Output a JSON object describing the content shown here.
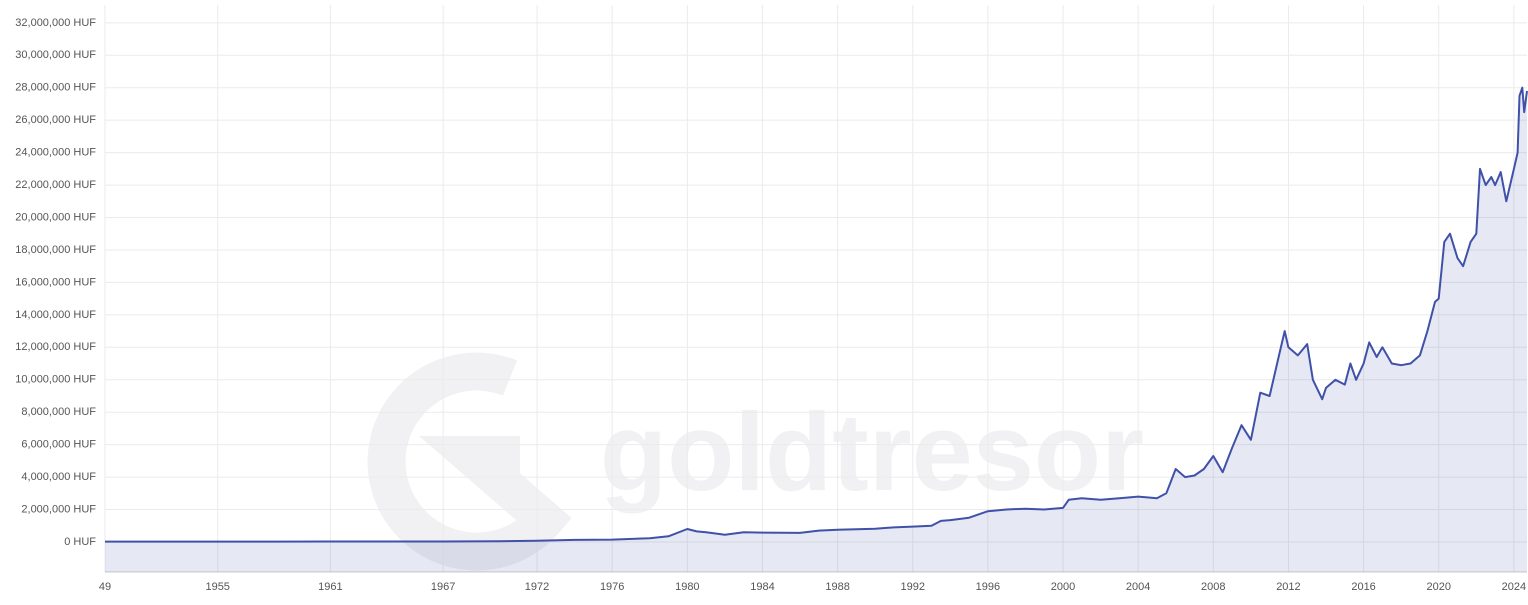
{
  "chart_data": {
    "type": "area",
    "watermark": "goldtresor",
    "x": [
      1949,
      1952,
      1955,
      1958,
      1961,
      1964,
      1967,
      1970,
      1972,
      1974,
      1976,
      1978,
      1979,
      1980,
      1980.5,
      1981,
      1982,
      1983,
      1984,
      1986,
      1987,
      1988,
      1990,
      1991,
      1992,
      1993,
      1993.5,
      1994,
      1995,
      1996,
      1997,
      1998,
      1999,
      2000,
      2000.3,
      2001,
      2002,
      2003,
      2004,
      2005,
      2005.5,
      2006,
      2006.5,
      2007,
      2007.5,
      2008,
      2008.5,
      2009,
      2009.5,
      2010,
      2010.5,
      2011,
      2011.5,
      2011.8,
      2012,
      2012.5,
      2013,
      2013.3,
      2013.8,
      2014,
      2014.5,
      2015,
      2015.3,
      2015.6,
      2016,
      2016.3,
      2016.7,
      2017,
      2017.5,
      2018,
      2018.5,
      2019,
      2019.4,
      2019.8,
      2020,
      2020.3,
      2020.6,
      2021,
      2021.3,
      2021.7,
      2022,
      2022.2,
      2022.5,
      2022.8,
      2023,
      2023.3,
      2023.6,
      2023.9,
      2024,
      2024.2,
      2024.3,
      2024.45,
      2024.55,
      2024.7
    ],
    "series": [
      {
        "color": "#3f51a8",
        "values": [
          25000,
          25000,
          26000,
          26000,
          27000,
          28000,
          30000,
          50000,
          80000,
          130000,
          150000,
          230000,
          350000,
          800000,
          650000,
          600000,
          450000,
          600000,
          580000,
          560000,
          700000,
          750000,
          820000,
          900000,
          950000,
          1000000,
          1300000,
          1350000,
          1500000,
          1900000,
          2000000,
          2050000,
          2000000,
          2100000,
          2600000,
          2700000,
          2600000,
          2700000,
          2800000,
          2700000,
          3000000,
          4500000,
          4000000,
          4100000,
          4500000,
          5300000,
          4300000,
          5800000,
          7200000,
          6300000,
          9200000,
          9000000,
          11500000,
          13000000,
          12000000,
          11500000,
          12200000,
          10000000,
          8800000,
          9500000,
          10000000,
          9700000,
          11000000,
          10000000,
          11000000,
          12300000,
          11400000,
          12000000,
          11000000,
          10900000,
          11000000,
          11500000,
          13000000,
          14800000,
          15000000,
          18500000,
          19000000,
          17500000,
          17000000,
          18500000,
          19000000,
          23000000,
          22000000,
          22500000,
          22000000,
          22800000,
          21000000,
          22500000,
          23000000,
          24000000,
          27500000,
          28000000,
          26500000,
          27800000
        ]
      }
    ],
    "xlim": [
      1949,
      2024.7
    ],
    "xticks": [
      {
        "value": 1949,
        "label": "49"
      },
      1955,
      1961,
      1967,
      1972,
      1976,
      1980,
      1984,
      1988,
      1992,
      1996,
      2000,
      2004,
      2008,
      2012,
      2016,
      2020,
      2024
    ],
    "ylim": [
      -1850000,
      33100000
    ],
    "yticks": [
      {
        "value": 0,
        "label": "0 HUF"
      },
      {
        "value": 2000000,
        "label": "2,000,000 HUF"
      },
      {
        "value": 4000000,
        "label": "4,000,000 HUF"
      },
      {
        "value": 6000000,
        "label": "6,000,000 HUF"
      },
      {
        "value": 8000000,
        "label": "8,000,000 HUF"
      },
      {
        "value": 10000000,
        "label": "10,000,000 HUF"
      },
      {
        "value": 12000000,
        "label": "12,000,000 HUF"
      },
      {
        "value": 14000000,
        "label": "14,000,000 HUF"
      },
      {
        "value": 16000000,
        "label": "16,000,000 HUF"
      },
      {
        "value": 18000000,
        "label": "18,000,000 HUF"
      },
      {
        "value": 20000000,
        "label": "20,000,000 HUF"
      },
      {
        "value": 22000000,
        "label": "22,000,000 HUF"
      },
      {
        "value": 24000000,
        "label": "24,000,000 HUF"
      },
      {
        "value": 26000000,
        "label": "26,000,000 HUF"
      },
      {
        "value": 28000000,
        "label": "28,000,000 HUF"
      },
      {
        "value": 30000000,
        "label": "30,000,000 HUF"
      },
      {
        "value": 32000000,
        "label": "32,000,000 HUF"
      }
    ],
    "grid": true
  }
}
